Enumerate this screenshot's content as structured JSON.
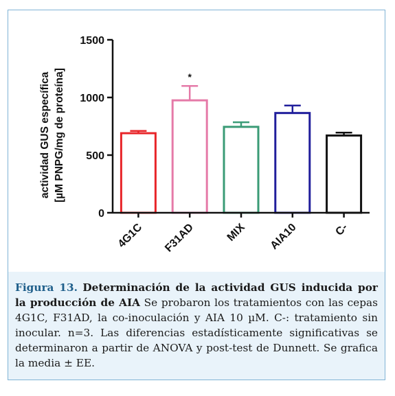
{
  "chart_data": {
    "type": "bar",
    "categories": [
      "4G1C",
      "F31AD",
      "MIX",
      "AIA10",
      "C-"
    ],
    "values": [
      690,
      975,
      745,
      865,
      670
    ],
    "errors": [
      20,
      125,
      40,
      65,
      25
    ],
    "colors": [
      "#e8262a",
      "#e57aa8",
      "#3a9b76",
      "#1f1d9b",
      "#111111"
    ],
    "significance": [
      "",
      "*",
      "",
      "",
      ""
    ],
    "ylabel_line1": "actividad GUS específica",
    "ylabel_line2": "[µM PNPG/mg de proteína]",
    "ylim": [
      0,
      1500
    ],
    "yticks": [
      0,
      500,
      1000,
      1500
    ]
  },
  "caption": {
    "label": "Figura 13.",
    "title": "Determinación de la actividad GUS inducida por la producción de AIA",
    "body": "Se probaron los tratamientos con las cepas 4G1C, F31AD, la co-inoculación y AIA 10 µM. C-: tratamiento sin inocular. n=3. Las diferencias estadísticamente significativas se determinaron a partir de ANOVA y post-test de Dunnett. Se grafica la media ± EE."
  }
}
